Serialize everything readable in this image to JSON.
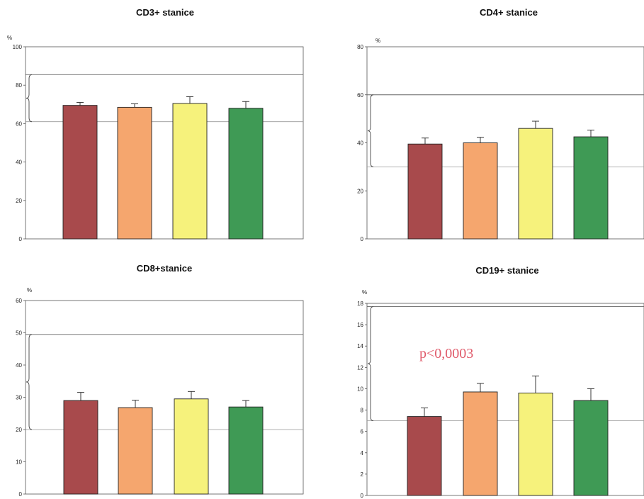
{
  "chart_data": [
    {
      "type": "bar",
      "title": "CD3+ stanice",
      "ylabel": "%",
      "ylim": [
        0,
        100
      ],
      "yticks": [
        0,
        20,
        40,
        60,
        80,
        100
      ],
      "categories": [
        "",
        "",
        "",
        ""
      ],
      "values": [
        69.5,
        68.5,
        70.5,
        68
      ],
      "errors": [
        1.5,
        1.8,
        3.5,
        3.5
      ],
      "colors": [
        "#a84a4c",
        "#f5a66e",
        "#f6f27c",
        "#3f9a55"
      ],
      "reference_range": [
        61,
        85.5
      ],
      "annotation": ""
    },
    {
      "type": "bar",
      "title": "CD4+ stanice",
      "ylabel": "%",
      "ylim": [
        0,
        80
      ],
      "yticks": [
        0,
        20,
        40,
        60,
        80
      ],
      "categories": [
        "",
        "",
        "",
        ""
      ],
      "values": [
        39.5,
        40,
        46,
        42.5
      ],
      "errors": [
        2.5,
        2.3,
        3,
        2.8
      ],
      "colors": [
        "#a84a4c",
        "#f5a66e",
        "#f6f27c",
        "#3f9a55"
      ],
      "reference_range": [
        30,
        60
      ],
      "annotation": ""
    },
    {
      "type": "bar",
      "title": "CD8+stanice",
      "ylabel": "%",
      "ylim": [
        0,
        60
      ],
      "yticks": [
        0,
        10,
        20,
        30,
        40,
        50,
        60
      ],
      "categories": [
        "",
        "",
        "",
        ""
      ],
      "values": [
        29,
        26.8,
        29.5,
        27
      ],
      "errors": [
        2.5,
        2.3,
        2.3,
        2
      ],
      "colors": [
        "#a84a4c",
        "#f5a66e",
        "#f6f27c",
        "#3f9a55"
      ],
      "reference_range": [
        20,
        49.5
      ],
      "annotation": ""
    },
    {
      "type": "bar",
      "title": "CD19+ stanice",
      "ylabel": "%",
      "ylim": [
        0,
        18
      ],
      "yticks": [
        0,
        2,
        4,
        6,
        8,
        10,
        12,
        14,
        16,
        18
      ],
      "categories": [
        "",
        "",
        "",
        ""
      ],
      "values": [
        7.4,
        9.7,
        9.6,
        8.9
      ],
      "errors": [
        0.8,
        0.8,
        1.6,
        1.1
      ],
      "colors": [
        "#a84a4c",
        "#f5a66e",
        "#f6f27c",
        "#3f9a55"
      ],
      "reference_range": [
        7,
        17.7
      ],
      "annotation": "p<0,0003"
    }
  ]
}
